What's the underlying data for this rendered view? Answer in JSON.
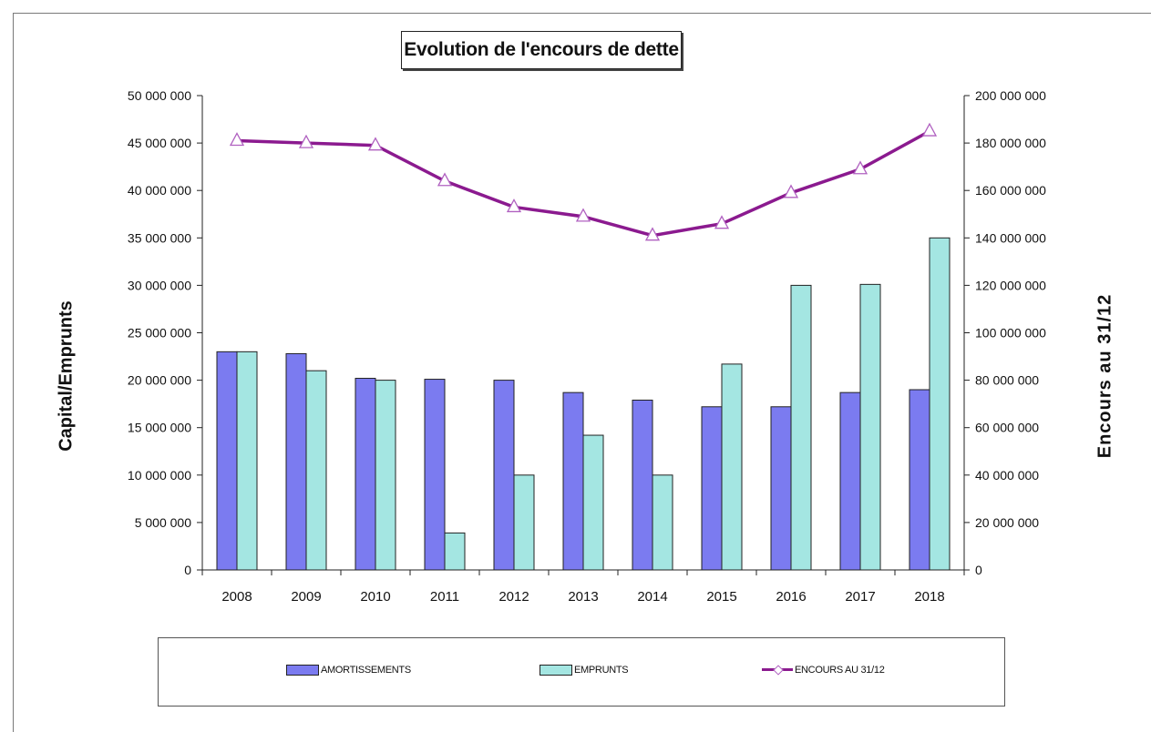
{
  "chart_data": {
    "type": "bar+line",
    "title": "Evolution de l'encours de dette",
    "categories": [
      "2008",
      "2009",
      "2010",
      "2011",
      "2012",
      "2013",
      "2014",
      "2015",
      "2016",
      "2017",
      "2018"
    ],
    "ylabel_left": "Capital/Emprunts",
    "ylabel_right": "Encours au 31/12",
    "y_left": {
      "range": [
        0,
        50000000
      ],
      "ticks": [
        "0",
        "5 000 000",
        "10 000 000",
        "15 000 000",
        "20 000 000",
        "25 000 000",
        "30 000 000",
        "35 000 000",
        "40 000 000",
        "45 000 000",
        "50 000 000"
      ]
    },
    "y_right": {
      "range": [
        0,
        200000000
      ],
      "ticks": [
        "0",
        "20 000 000",
        "40 000 000",
        "60 000 000",
        "80 000 000",
        "100 000 000",
        "120 000 000",
        "140 000 000",
        "160 000 000",
        "180 000 000",
        "200 000 000"
      ]
    },
    "series": [
      {
        "name": "AMORTISSEMENTS",
        "type": "bar",
        "axis": "left",
        "color": "#7b7bf0",
        "values": [
          23000000,
          22800000,
          20200000,
          20100000,
          20000000,
          18700000,
          17900000,
          17200000,
          17200000,
          18700000,
          19000000
        ]
      },
      {
        "name": "EMPRUNTS",
        "type": "bar",
        "axis": "left",
        "color": "#a4e6e2",
        "values": [
          23000000,
          21000000,
          20000000,
          3900000,
          10000000,
          14200000,
          10000000,
          21700000,
          30000000,
          30100000,
          35000000
        ]
      },
      {
        "name": "ENCOURS AU 31/12",
        "type": "line",
        "axis": "right",
        "color": "#8b1a8f",
        "marker": "triangle",
        "values": [
          181000000,
          180000000,
          179000000,
          164000000,
          153000000,
          149000000,
          141000000,
          146000000,
          159000000,
          169000000,
          185000000
        ]
      }
    ],
    "grid": false,
    "legend_position": "bottom"
  }
}
